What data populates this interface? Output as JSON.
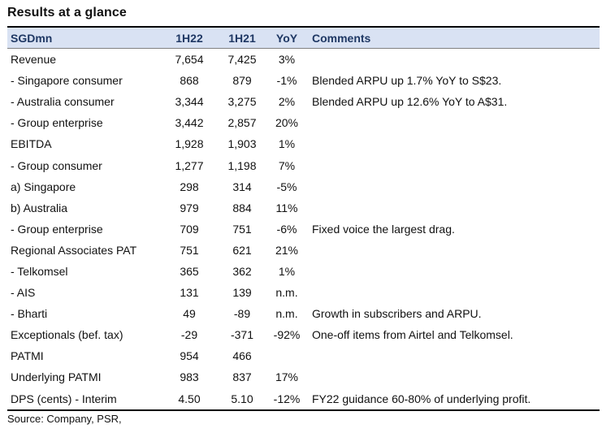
{
  "title": "Results at a glance",
  "columns": {
    "label": "SGDmn",
    "h22": "1H22",
    "h21": "1H21",
    "yoy": "YoY",
    "comments": "Comments"
  },
  "rows": [
    {
      "label": "Revenue",
      "h22": "7,654",
      "h21": "7,425",
      "yoy": "3%",
      "comment": ""
    },
    {
      "label": " - Singapore consumer",
      "h22": "868",
      "h21": "879",
      "yoy": "-1%",
      "comment": "Blended ARPU up 1.7% YoY to S$23."
    },
    {
      "label": " - Australia consumer",
      "h22": "3,344",
      "h21": "3,275",
      "yoy": "2%",
      "comment": "Blended ARPU up 12.6% YoY to A$31."
    },
    {
      "label": " - Group enterprise",
      "h22": "3,442",
      "h21": "2,857",
      "yoy": "20%",
      "comment": ""
    },
    {
      "label": "EBITDA",
      "h22": "1,928",
      "h21": "1,903",
      "yoy": "1%",
      "comment": ""
    },
    {
      "label": " - Group consumer",
      "h22": "1,277",
      "h21": "1,198",
      "yoy": "7%",
      "comment": ""
    },
    {
      "label": "a) Singapore",
      "h22": "298",
      "h21": "314",
      "yoy": "-5%",
      "comment": ""
    },
    {
      "label": "b) Australia",
      "h22": "979",
      "h21": "884",
      "yoy": "11%",
      "comment": ""
    },
    {
      "label": " - Group enterprise",
      "h22": "709",
      "h21": "751",
      "yoy": "-6%",
      "comment": "Fixed voice the largest drag."
    },
    {
      "label": "Regional Associates PAT",
      "h22": "751",
      "h21": "621",
      "yoy": "21%",
      "comment": ""
    },
    {
      "label": " - Telkomsel",
      "h22": "365",
      "h21": "362",
      "yoy": "1%",
      "comment": ""
    },
    {
      "label": " - AIS",
      "h22": "131",
      "h21": "139",
      "yoy": "n.m.",
      "comment": ""
    },
    {
      "label": " - Bharti",
      "h22": "49",
      "h21": "-89",
      "yoy": "n.m.",
      "comment": "Growth in subscribers and ARPU."
    },
    {
      "label": "Exceptionals (bef. tax)",
      "h22": "-29",
      "h21": "-371",
      "yoy": "-92%",
      "comment": "One-off items from Airtel and Telkomsel."
    },
    {
      "label": "PATMI",
      "h22": "954",
      "h21": "466",
      "yoy": "",
      "comment": ""
    },
    {
      "label": "Underlying PATMI",
      "h22": "983",
      "h21": "837",
      "yoy": "17%",
      "comment": ""
    },
    {
      "label": "DPS (cents)  - Interim",
      "h22": "4.50",
      "h21": "5.10",
      "yoy": "-12%",
      "comment": "FY22 guidance 60-80% of underlying profit."
    }
  ],
  "source": "Source: Company, PSR,"
}
